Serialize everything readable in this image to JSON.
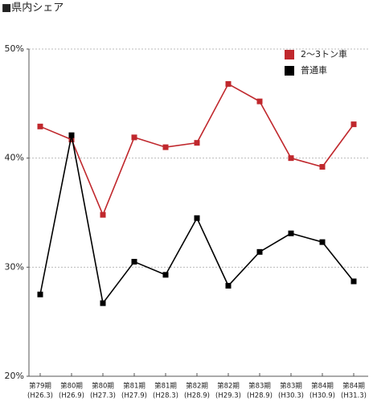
{
  "chart_data": {
    "type": "line",
    "title": "■県内シェア",
    "categories": [
      [
        "第79期",
        "(H26.3)"
      ],
      [
        "第80期",
        "(H26.9)"
      ],
      [
        "第80期",
        "(H27.3)"
      ],
      [
        "第81期",
        "(H27.9)"
      ],
      [
        "第81期",
        "(H28.3)"
      ],
      [
        "第82期",
        "(H28.9)"
      ],
      [
        "第82期",
        "(H29.3)"
      ],
      [
        "第83期",
        "(H28.9)"
      ],
      [
        "第83期",
        "(H30.3)"
      ],
      [
        "第84期",
        "(H30.9)"
      ],
      [
        "第84期",
        "(H31.3)"
      ]
    ],
    "series": [
      {
        "name": "2～3トン車",
        "color": "#c0282d",
        "values": [
          42.9,
          41.7,
          34.8,
          41.9,
          41.0,
          41.4,
          46.8,
          45.2,
          40.0,
          39.2,
          43.1
        ]
      },
      {
        "name": "普通車",
        "color": "#000000",
        "values": [
          27.5,
          42.1,
          26.7,
          30.5,
          29.3,
          34.5,
          28.3,
          31.4,
          33.1,
          32.3,
          28.7
        ]
      }
    ],
    "ylim": [
      20,
      50
    ],
    "yticks": [
      {
        "value": 20,
        "label": "20%"
      },
      {
        "value": 30,
        "label": "30%"
      },
      {
        "value": 40,
        "label": "40%"
      },
      {
        "value": 50,
        "label": "50%"
      }
    ],
    "grid": true,
    "legend": "top-right"
  }
}
